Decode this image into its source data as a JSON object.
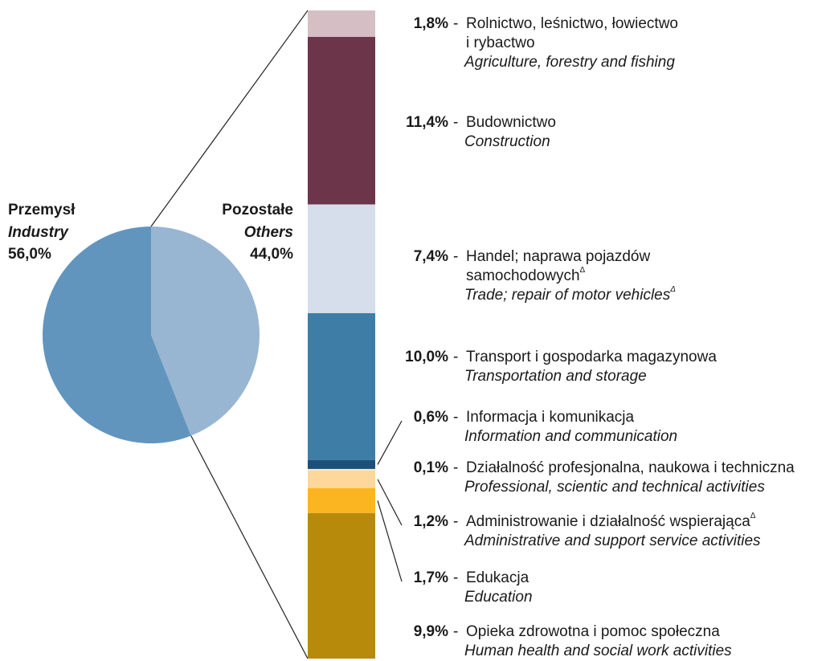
{
  "chart_data": {
    "type": "pie",
    "series": [
      {
        "name": "Przemysł",
        "name_en": "Industry",
        "value": 56.0,
        "value_label": "56,0%",
        "color": "#6195be"
      },
      {
        "name": "Pozostałe",
        "name_en": "Others",
        "value": 44.0,
        "value_label": "44,0%",
        "color": "#98b6d1"
      }
    ],
    "breakdown": {
      "separator": "-",
      "items": [
        {
          "name": [
            "Rolnictwo, leśnictwo, łowiectwo",
            "i rybactwo"
          ],
          "name_en": "Agriculture, forestry and fishing",
          "value": 1.8,
          "value_label": "1,8%",
          "color": "#d5bfc4"
        },
        {
          "name": [
            "Budownictwo"
          ],
          "name_en": "Construction",
          "value": 11.4,
          "value_label": "11,4%",
          "color": "#6d3549"
        },
        {
          "name": [
            "Handel; naprawa pojazdów",
            "samochodowych"
          ],
          "name_sup": "Δ",
          "name_en": "Trade; repair of motor vehicles",
          "name_en_sup": "Δ",
          "value": 7.4,
          "value_label": "7,4%",
          "color": "#d5deea"
        },
        {
          "name": [
            "Transport i gospodarka magazynowa"
          ],
          "name_en": "Transportation and storage",
          "value": 10.0,
          "value_label": "10,0%",
          "color": "#3e7ea6"
        },
        {
          "name": [
            "Informacja i komunikacja"
          ],
          "name_en": "Information and communication",
          "value": 0.6,
          "value_label": "0,6%",
          "color": "#1d4f78"
        },
        {
          "name": [
            "Działalność profesjonalna, naukowa i techniczna"
          ],
          "name_en": "Professional, scientic and technical activities",
          "value": 0.1,
          "value_label": "0,1%",
          "color": "#f3ead6"
        },
        {
          "name": [
            "Administrowanie i działalność wspierająca"
          ],
          "name_sup": "Δ",
          "name_en": "Administrative and support service activities",
          "value": 1.2,
          "value_label": "1,2%",
          "color": "#fdd89a"
        },
        {
          "name": [
            "Edukacja"
          ],
          "name_en": "Education",
          "value": 1.7,
          "value_label": "1,7%",
          "color": "#fbb520"
        },
        {
          "name": [
            "Opieka zdrowotna i pomoc społeczna"
          ],
          "name_en": "Human health and social work activities",
          "value": 9.9,
          "value_label": "9,9%",
          "color": "#b78a0c"
        }
      ]
    }
  }
}
